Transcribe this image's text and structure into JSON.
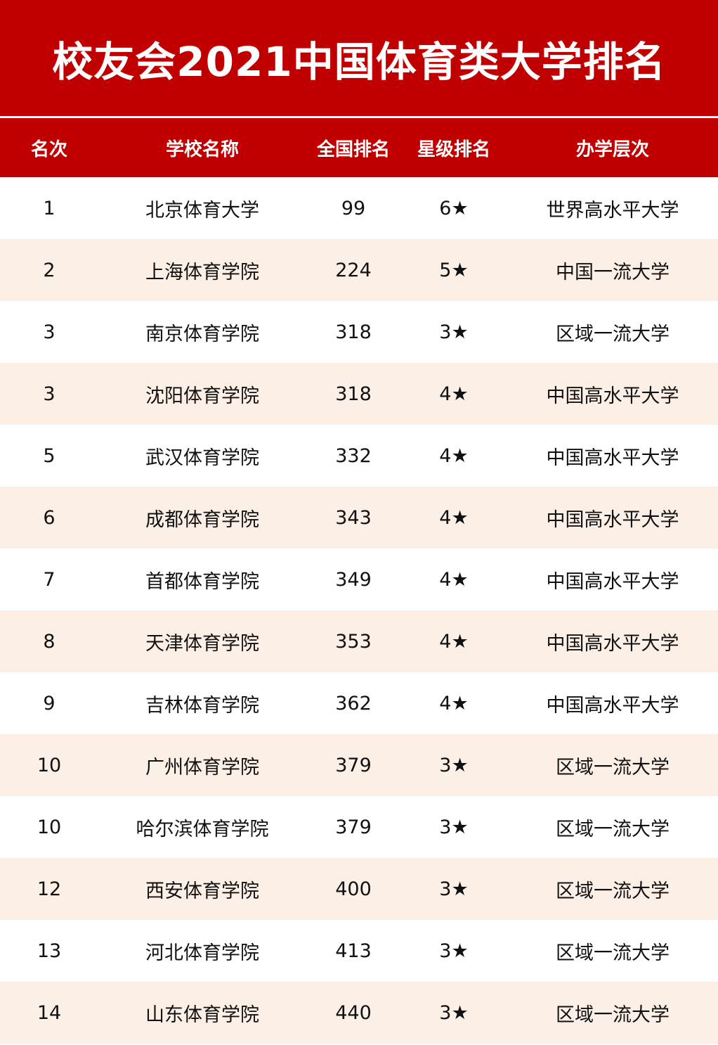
{
  "title": "校友会2021中国体育类大学排名",
  "headers": [
    "名次",
    "学校名称",
    "全国排名",
    "星级排名",
    "办学层次"
  ],
  "rows": [
    [
      "1",
      "北京体育大学",
      "99",
      "6★",
      "世界高水平大学"
    ],
    [
      "2",
      "上海体育学院",
      "224",
      "5★",
      "中国一流大学"
    ],
    [
      "3",
      "南京体育学院",
      "318",
      "3★",
      "区域一流大学"
    ],
    [
      "3",
      "沈阳体育学院",
      "318",
      "4★",
      "中国高水平大学"
    ],
    [
      "5",
      "武汉体育学院",
      "332",
      "4★",
      "中国高水平大学"
    ],
    [
      "6",
      "成都体育学院",
      "343",
      "4★",
      "中国高水平大学"
    ],
    [
      "7",
      "首都体育学院",
      "349",
      "4★",
      "中国高水平大学"
    ],
    [
      "8",
      "天津体育学院",
      "353",
      "4★",
      "中国高水平大学"
    ],
    [
      "9",
      "吉林体育学院",
      "362",
      "4★",
      "中国高水平大学"
    ],
    [
      "10",
      "广州体育学院",
      "379",
      "3★",
      "区域一流大学"
    ],
    [
      "10",
      "哈尔滨体育学院",
      "379",
      "3★",
      "区域一流大学"
    ],
    [
      "12",
      "西安体育学院",
      "400",
      "3★",
      "区域一流大学"
    ],
    [
      "13",
      "河北体育学院",
      "413",
      "3★",
      "区域一流大学"
    ],
    [
      "14",
      "山东体育学院",
      "440",
      "3★",
      "区域一流大学"
    ]
  ],
  "colors": {
    "header": "#c00000",
    "alt_row": "#fcefe6"
  }
}
